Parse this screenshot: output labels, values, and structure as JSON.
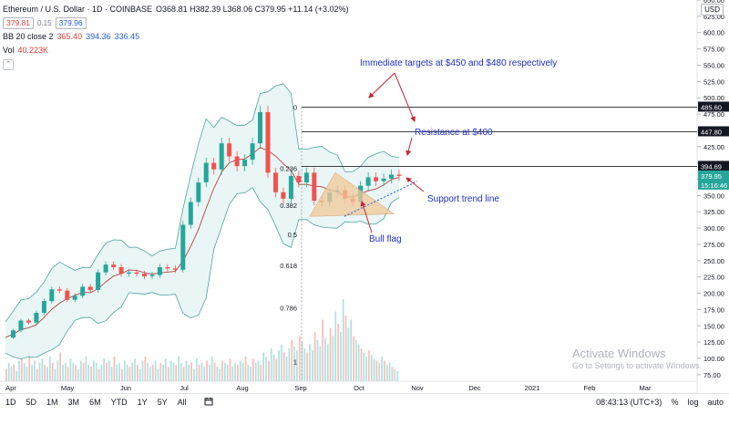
{
  "header": {
    "symbol": "Ethereum / U.S. Dollar · 1D · COINBASE",
    "ohlc": "O368.81 H382.39 L368.06 C379.95 +11.14 (+3.02%)",
    "sell_price": "379.81",
    "spread": "0.15",
    "buy_price": "379.96",
    "bb_label": "BB 20 close 2",
    "bb_mid": "365.40",
    "bb_upper": "394.36",
    "bb_lower": "336.45",
    "vol_label": "Vol",
    "vol_value": "40.223K",
    "collapse_icon": "chevron-up-icon",
    "currency": "USD"
  },
  "annotations": {
    "targets": "Immediate targets at $450 and $480 respectively",
    "resistance": "Resistance at $400",
    "support": "Support trend line",
    "flag": "Bull flag"
  },
  "watermark": {
    "line1": "Activate Windows",
    "line2": "Go to Settings to activate Windows."
  },
  "toolbar": {
    "timeframes": [
      "1D",
      "5D",
      "1M",
      "3M",
      "6M",
      "YTD",
      "1Y",
      "5Y",
      "All"
    ],
    "calendar_icon": "calendar-icon",
    "clock": "08:43:13 (UTC+3)",
    "percent": "%",
    "log": "log",
    "auto": "auto"
  },
  "colors": {
    "up": "#26a69a",
    "down": "#ef5350",
    "bb_mid": "#b0453f",
    "bb_band": "#4fa3a0",
    "bb_fill": "#e3f4f2",
    "annotation": "#1e2fc7",
    "arrow": "#c0263a",
    "flag_fill": "#f3c99a",
    "fib_line": "#26262b",
    "target_label": "#131722"
  },
  "chart_data": {
    "type": "candlestick",
    "title": "Ethereum / U.S. Dollar · 1D · COINBASE",
    "y_axis": {
      "ylim": [
        65,
        650
      ],
      "ticks": [
        75,
        100,
        125,
        150,
        175,
        200,
        225,
        250,
        275,
        300,
        325,
        350,
        375,
        400,
        425,
        450,
        475,
        500,
        525,
        550,
        575,
        600,
        625,
        650
      ]
    },
    "x_axis": {
      "ticks": [
        "Apr",
        "May",
        "Jun",
        "Jul",
        "Aug",
        "Sep",
        "Oct",
        "Nov",
        "Dec",
        "2021",
        "Feb",
        "Mar"
      ]
    },
    "price_series": [
      {
        "x": "Mar-31",
        "y": 132
      },
      {
        "x": "Apr-05",
        "y": 143
      },
      {
        "x": "Apr-10",
        "y": 158
      },
      {
        "x": "Apr-15",
        "y": 155
      },
      {
        "x": "Apr-20",
        "y": 170
      },
      {
        "x": "Apr-25",
        "y": 188
      },
      {
        "x": "Apr-30",
        "y": 206
      },
      {
        "x": "May-05",
        "y": 204
      },
      {
        "x": "May-10",
        "y": 190
      },
      {
        "x": "May-15",
        "y": 196
      },
      {
        "x": "May-20",
        "y": 210
      },
      {
        "x": "May-25",
        "y": 205
      },
      {
        "x": "May-31",
        "y": 232
      },
      {
        "x": "Jun-05",
        "y": 244
      },
      {
        "x": "Jun-10",
        "y": 240
      },
      {
        "x": "Jun-15",
        "y": 230
      },
      {
        "x": "Jun-20",
        "y": 232
      },
      {
        "x": "Jun-25",
        "y": 230
      },
      {
        "x": "Jun-30",
        "y": 226
      },
      {
        "x": "Jul-05",
        "y": 228
      },
      {
        "x": "Jul-10",
        "y": 240
      },
      {
        "x": "Jul-15",
        "y": 238
      },
      {
        "x": "Jul-20",
        "y": 236
      },
      {
        "x": "Jul-25",
        "y": 305
      },
      {
        "x": "Jul-30",
        "y": 340
      },
      {
        "x": "Aug-01",
        "y": 370
      },
      {
        "x": "Aug-05",
        "y": 400
      },
      {
        "x": "Aug-10",
        "y": 390
      },
      {
        "x": "Aug-15",
        "y": 430
      },
      {
        "x": "Aug-20",
        "y": 410
      },
      {
        "x": "Aug-25",
        "y": 395
      },
      {
        "x": "Aug-28",
        "y": 405
      },
      {
        "x": "Aug-30",
        "y": 430
      },
      {
        "x": "Sep-01",
        "y": 478
      },
      {
        "x": "Sep-03",
        "y": 385
      },
      {
        "x": "Sep-05",
        "y": 355
      },
      {
        "x": "Sep-08",
        "y": 345
      },
      {
        "x": "Sep-12",
        "y": 380
      },
      {
        "x": "Sep-15",
        "y": 370
      },
      {
        "x": "Sep-18",
        "y": 385
      },
      {
        "x": "Sep-21",
        "y": 342
      },
      {
        "x": "Sep-24",
        "y": 340
      },
      {
        "x": "Sep-27",
        "y": 355
      },
      {
        "x": "Sep-30",
        "y": 358
      },
      {
        "x": "Oct-03",
        "y": 345
      },
      {
        "x": "Oct-06",
        "y": 340
      },
      {
        "x": "Oct-09",
        "y": 365
      },
      {
        "x": "Oct-12",
        "y": 378
      },
      {
        "x": "Oct-15",
        "y": 372
      },
      {
        "x": "Oct-18",
        "y": 376
      },
      {
        "x": "Oct-21",
        "y": 382
      },
      {
        "x": "Oct-23",
        "y": 380
      }
    ],
    "fib_levels": [
      {
        "label": "0",
        "price": 485.6
      },
      {
        "label": "0.236",
        "price": 392
      },
      {
        "label": "0.382",
        "price": 335
      },
      {
        "label": "0.5",
        "price": 290
      },
      {
        "label": "0.618",
        "price": 243
      },
      {
        "label": "0.786",
        "price": 178
      },
      {
        "label": "1",
        "price": 95
      }
    ],
    "price_labels": [
      {
        "text": "485.60",
        "price": 485.6,
        "kind": "line"
      },
      {
        "text": "447.80",
        "price": 447.8,
        "kind": "line"
      },
      {
        "text": "394.69",
        "price": 394.69,
        "kind": "line"
      },
      {
        "text": "379.95",
        "price": 379.95,
        "kind": "current"
      },
      {
        "text": "15:16:46",
        "price": 366,
        "kind": "countdown"
      }
    ],
    "volume": [
      6,
      9,
      7,
      8,
      5,
      10,
      12,
      9,
      7,
      14,
      8,
      10,
      6,
      9,
      11,
      8,
      7,
      12,
      9,
      6,
      10,
      14,
      8,
      9,
      7,
      11,
      9,
      8,
      6,
      10,
      9,
      12,
      8,
      7,
      10,
      9,
      6,
      8,
      11,
      9,
      10,
      7,
      12,
      8,
      9,
      6,
      10,
      8,
      7,
      9,
      11,
      8,
      6,
      10,
      12,
      9,
      7,
      8,
      10,
      6,
      9,
      8,
      11,
      7,
      10,
      9,
      8,
      12,
      9,
      7,
      10,
      8,
      9,
      6,
      11,
      8,
      9,
      7,
      10,
      8,
      12,
      9,
      7,
      6,
      10,
      9,
      8,
      11,
      7,
      9,
      8,
      10,
      9,
      12,
      8,
      7,
      11,
      9,
      10,
      8,
      14,
      12,
      10,
      16,
      13,
      11,
      15,
      18,
      14,
      12,
      16,
      20,
      17,
      15,
      22,
      19,
      16,
      14,
      18,
      15,
      24,
      20,
      17,
      30,
      21,
      18,
      26,
      22,
      34,
      28,
      24,
      40,
      32,
      26,
      30,
      22,
      20,
      18,
      16,
      14,
      12,
      15,
      13,
      11,
      10,
      9,
      12,
      10,
      8,
      9,
      7,
      6,
      5
    ]
  }
}
